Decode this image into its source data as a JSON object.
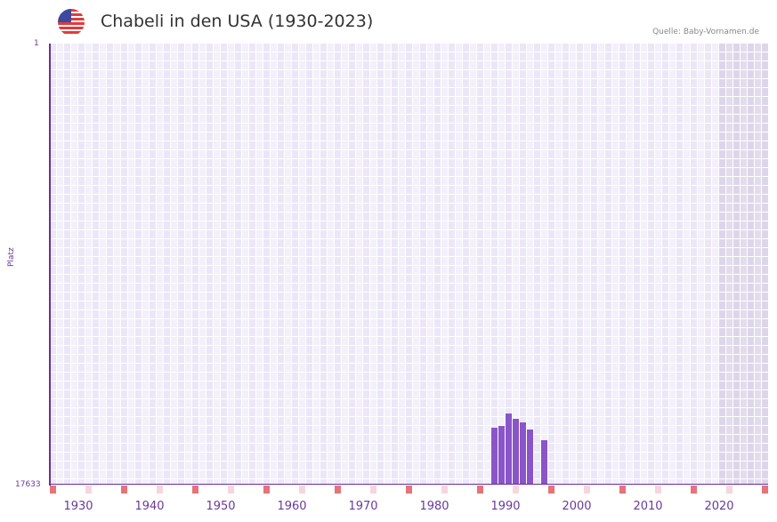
{
  "header": {
    "flag_icon": "us-flag-icon",
    "title": "Chabeli in den USA (1930-2023)",
    "source": "Quelle: Baby-Vornamen.de"
  },
  "colors": {
    "bar": "#8a55c8",
    "axis": "#6a2e9a",
    "grid_a": "#ece7f7",
    "grid_b": "#f3f0fb",
    "future_shade": "#e2dced",
    "marker_strong": "#e5737a",
    "marker_light": "#f6d6dc"
  },
  "chart_data": {
    "type": "bar",
    "title": "Chabeli in den USA (1930-2023)",
    "xlabel": "",
    "ylabel": "Platz",
    "y_axis_inverted": true,
    "ylim": [
      17633,
      1
    ],
    "y_ticks": [
      "1",
      "17633"
    ],
    "x_ticks": [
      "1930",
      "1940",
      "1950",
      "1960",
      "1970",
      "1980",
      "1990",
      "2000",
      "2010",
      "2020"
    ],
    "x_range": [
      1928,
      2028
    ],
    "grid": true,
    "categories": [
      "1990",
      "1991",
      "1992",
      "1993",
      "1994",
      "1995",
      "1997"
    ],
    "values": [
      15350,
      15280,
      14780,
      15000,
      15140,
      15420,
      15850
    ],
    "note": "Values are rank (Platz) estimated from bar heights; lower rank = higher bar"
  },
  "axes": {
    "y_top": "1",
    "y_bottom": "17633",
    "y_label": "Platz",
    "x_labels": [
      "1930",
      "1940",
      "1950",
      "1960",
      "1970",
      "1980",
      "1990",
      "2000",
      "2010",
      "2020"
    ]
  }
}
